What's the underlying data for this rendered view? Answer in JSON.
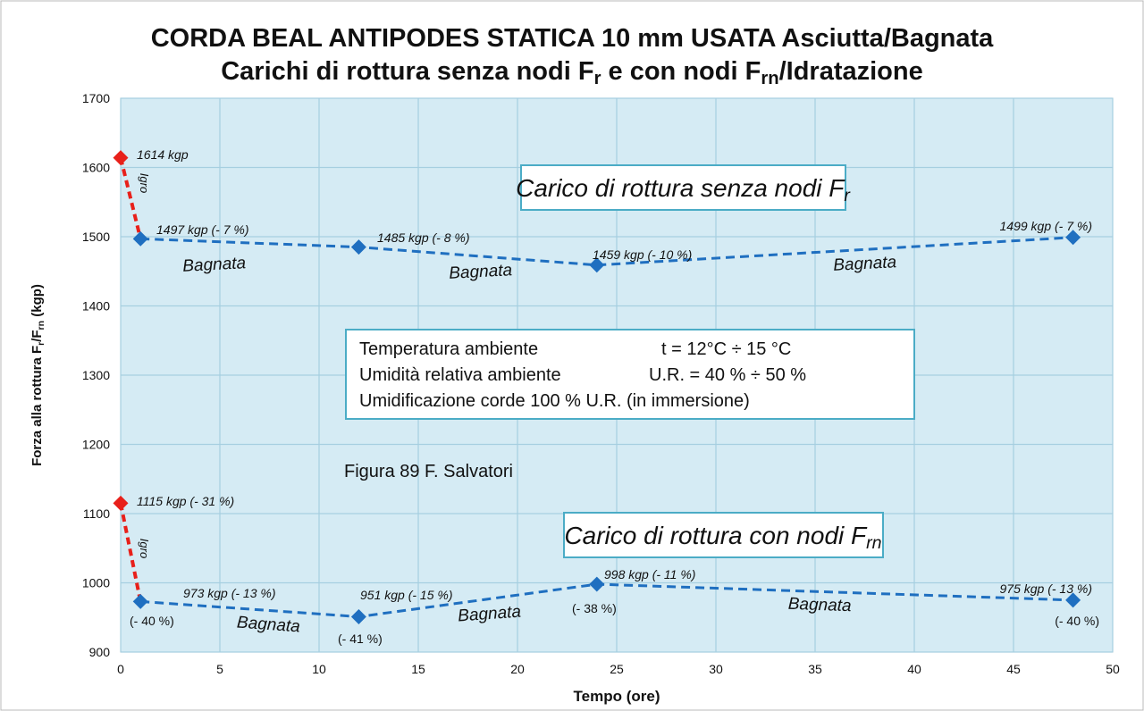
{
  "chart_data": {
    "type": "line",
    "title": "CORDA BEAL ANTIPODES STATICA 10 mm USATA Asciutta/Bagnata",
    "subtitle": [
      "Carichi di rottura senza nodi F",
      "r",
      " e con nodi F",
      "rn",
      "/Idratazione"
    ],
    "y_label": [
      "Forza alla rottura F",
      "r",
      "/F",
      "rn",
      "  (kgp)"
    ],
    "x_label": "Tempo (ore)",
    "xlim": [
      0,
      50
    ],
    "xticks": [
      0,
      5,
      10,
      15,
      20,
      25,
      30,
      35,
      40,
      45,
      50
    ],
    "ylim": [
      900,
      1700
    ],
    "yticks": [
      900,
      1000,
      1100,
      1200,
      1300,
      1400,
      1500,
      1600,
      1700
    ],
    "grid": true,
    "series": [
      {
        "color": "#e8201a",
        "x": [
          0
        ],
        "values": [
          1614
        ],
        "value_labels": [
          "1614 kgp"
        ]
      },
      {
        "color": "#1f6fc0",
        "x": [
          1,
          12,
          24,
          48
        ],
        "values": [
          1497,
          1485,
          1459,
          1499
        ],
        "value_labels": [
          "1497 kgp (- 7 %)",
          "1485 kgp (- 8 %)",
          "1459 kgp (- 10 %)",
          "1499 kgp (- 7 %)"
        ]
      },
      {
        "color": "#e8201a",
        "x": [
          0
        ],
        "values": [
          1115
        ],
        "value_labels": [
          "1115 kgp (- 31 %)"
        ]
      },
      {
        "color": "#1f6fc0",
        "x": [
          1,
          12,
          24,
          48
        ],
        "values": [
          973,
          951,
          998,
          975
        ],
        "value_labels": [
          "973 kgp (- 13 %)",
          "951 kgp (- 15 %)",
          "998  kgp (- 11 %)",
          "975 kgp (- 13 %)"
        ],
        "percent_labels": [
          "(- 40 %)",
          "(- 41 %)",
          "(- 38 %)",
          "(- 40 %)"
        ]
      }
    ],
    "annotations": [
      "Igro",
      "Igro",
      "Bagnata",
      "Bagnata",
      "Bagnata",
      "Bagnata",
      "Bagnata",
      "Bagnata"
    ],
    "box_fr": [
      "Carico di rottura senza nodi  F",
      "r"
    ],
    "box_frn": [
      "Carico di rottura con nodi  F",
      "rn"
    ],
    "conditions": [
      [
        "Temperatura ambiente",
        "t = 12°C ÷ 15 °C"
      ],
      [
        "Umidità relativa ambiente",
        "U.R. = 40 % ÷ 50 %"
      ],
      [
        "Umidificazione corde 100 % U.R. (in immersione)"
      ]
    ],
    "credit": "Figura 89  F. Salvatori"
  }
}
